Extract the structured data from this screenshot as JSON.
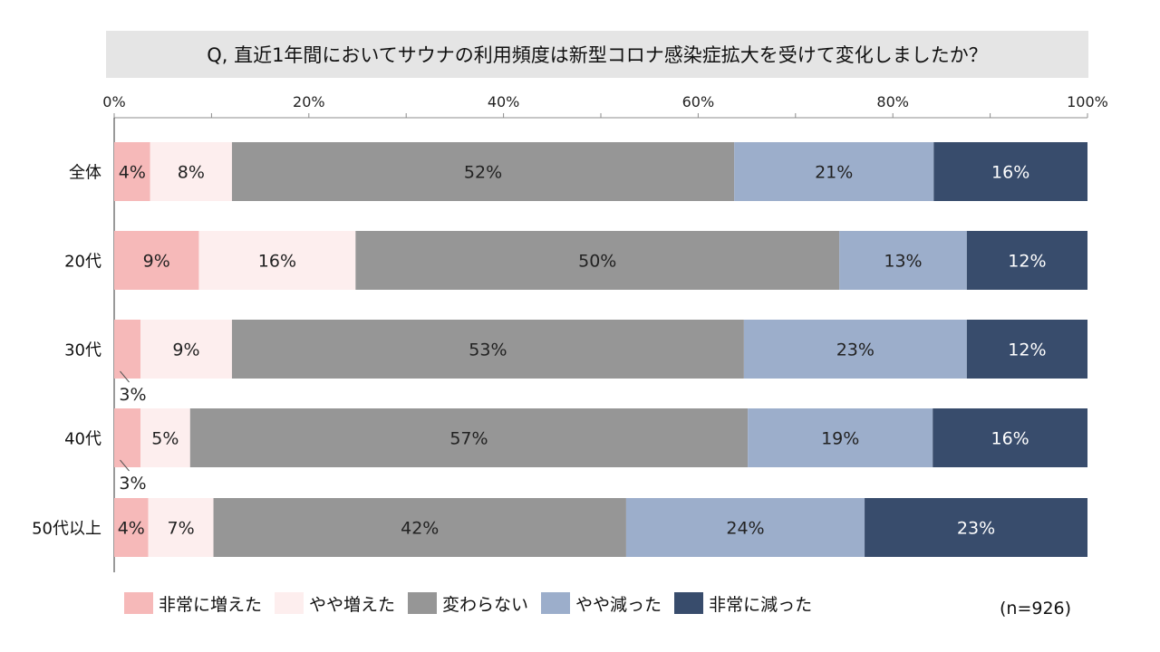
{
  "title": "Q, 直近1年間においてサウナの利用頻度は新型コロナ感染症拡大を受けて変化しましたか？",
  "sample_note": "(n=926)",
  "chart_data": {
    "type": "bar",
    "orientation": "horizontal",
    "stacked": true,
    "percent": true,
    "title": "Q, 直近1年間においてサウナの利用頻度は新型コロナ感染症拡大を受けて変化しましたか？",
    "xlim": [
      0,
      100
    ],
    "x_ticks": [
      "0%",
      "20%",
      "40%",
      "60%",
      "80%",
      "100%"
    ],
    "categories": [
      "全体",
      "20代",
      "30代",
      "40代",
      "50代以上"
    ],
    "series": [
      {
        "name": "非常に増えた",
        "color": "#f6b9b9",
        "values": [
          3.7,
          8.7,
          2.7,
          2.7,
          3.5
        ],
        "labels": [
          "4%",
          "9%",
          "3%",
          "3%",
          "4%"
        ]
      },
      {
        "name": "やや増えた",
        "color": "#fdeeee",
        "values": [
          8.4,
          16.1,
          9.4,
          5.1,
          6.7
        ],
        "labels": [
          "8%",
          "16%",
          "9%",
          "5%",
          "7%"
        ]
      },
      {
        "name": "変わらない",
        "color": "#969696",
        "values": [
          51.6,
          49.7,
          52.6,
          57.3,
          42.4
        ],
        "labels": [
          "52%",
          "50%",
          "53%",
          "57%",
          "42%"
        ]
      },
      {
        "name": "やや減った",
        "color": "#9caecb",
        "values": [
          20.5,
          13.1,
          22.9,
          19.0,
          24.5
        ],
        "labels": [
          "21%",
          "13%",
          "23%",
          "19%",
          "24%"
        ]
      },
      {
        "name": "非常に減った",
        "color": "#384c6c",
        "values": [
          15.8,
          12.4,
          12.4,
          15.9,
          22.9
        ],
        "labels": [
          "16%",
          "12%",
          "12%",
          "16%",
          "23%"
        ]
      }
    ],
    "legend_position": "bottom"
  }
}
